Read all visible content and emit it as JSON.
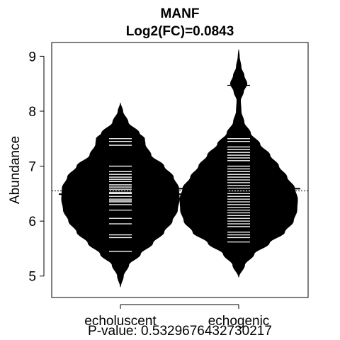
{
  "chart_data": {
    "type": "beanplot",
    "title": "MANF",
    "subtitle": "Log2(FC)=0.0843",
    "ylabel": "Abundance",
    "xlabel": "P-value: 0.5329676432730217",
    "ylim": [
      4.6,
      9.25
    ],
    "yticks": [
      5,
      6,
      7,
      8,
      9
    ],
    "grid": false,
    "categories": [
      "echoluscent",
      "echogenic"
    ],
    "overall_mean": 6.55,
    "groups": [
      {
        "name": "echoluscent",
        "mean": 6.49,
        "density_profile": [
          [
            4.8,
            0.0
          ],
          [
            5.0,
            0.05
          ],
          [
            5.2,
            0.14
          ],
          [
            5.4,
            0.34
          ],
          [
            5.6,
            0.55
          ],
          [
            5.8,
            0.74
          ],
          [
            6.0,
            0.88
          ],
          [
            6.2,
            0.97
          ],
          [
            6.4,
            1.0
          ],
          [
            6.6,
            0.99
          ],
          [
            6.8,
            0.9
          ],
          [
            7.0,
            0.74
          ],
          [
            7.2,
            0.52
          ],
          [
            7.4,
            0.42
          ],
          [
            7.5,
            0.41
          ],
          [
            7.6,
            0.32
          ],
          [
            7.8,
            0.13
          ],
          [
            8.0,
            0.04
          ],
          [
            8.15,
            0.0
          ]
        ],
        "observations": [
          5.45,
          5.7,
          5.75,
          5.95,
          6.05,
          6.2,
          6.3,
          6.35,
          6.37,
          6.4,
          6.45,
          6.5,
          6.52,
          6.55,
          6.58,
          6.62,
          6.66,
          6.72,
          6.76,
          6.8,
          6.85,
          6.9,
          7.0,
          7.38,
          7.45,
          7.5
        ]
      },
      {
        "name": "echogenic",
        "mean": 6.59,
        "density_profile": [
          [
            4.98,
            0.0
          ],
          [
            5.2,
            0.1
          ],
          [
            5.4,
            0.26
          ],
          [
            5.6,
            0.52
          ],
          [
            5.8,
            0.78
          ],
          [
            6.0,
            0.93
          ],
          [
            6.2,
            0.99
          ],
          [
            6.4,
            1.0
          ],
          [
            6.6,
            0.95
          ],
          [
            6.8,
            0.82
          ],
          [
            7.0,
            0.68
          ],
          [
            7.2,
            0.53
          ],
          [
            7.4,
            0.36
          ],
          [
            7.6,
            0.2
          ],
          [
            7.8,
            0.09
          ],
          [
            8.0,
            0.04
          ],
          [
            8.2,
            0.03
          ],
          [
            8.35,
            0.08
          ],
          [
            8.5,
            0.14
          ],
          [
            8.65,
            0.09
          ],
          [
            8.8,
            0.04
          ],
          [
            9.0,
            0.01
          ],
          [
            9.12,
            0.0
          ]
        ],
        "observations": [
          5.62,
          5.7,
          5.75,
          5.8,
          5.9,
          5.95,
          6.0,
          6.05,
          6.1,
          6.15,
          6.2,
          6.25,
          6.3,
          6.35,
          6.4,
          6.45,
          6.5,
          6.55,
          6.6,
          6.65,
          6.7,
          6.75,
          6.8,
          6.85,
          6.9,
          6.95,
          7.0,
          7.1,
          7.15,
          7.2,
          7.25,
          7.3,
          7.35,
          7.45,
          7.5,
          7.6,
          8.47
        ]
      }
    ]
  }
}
